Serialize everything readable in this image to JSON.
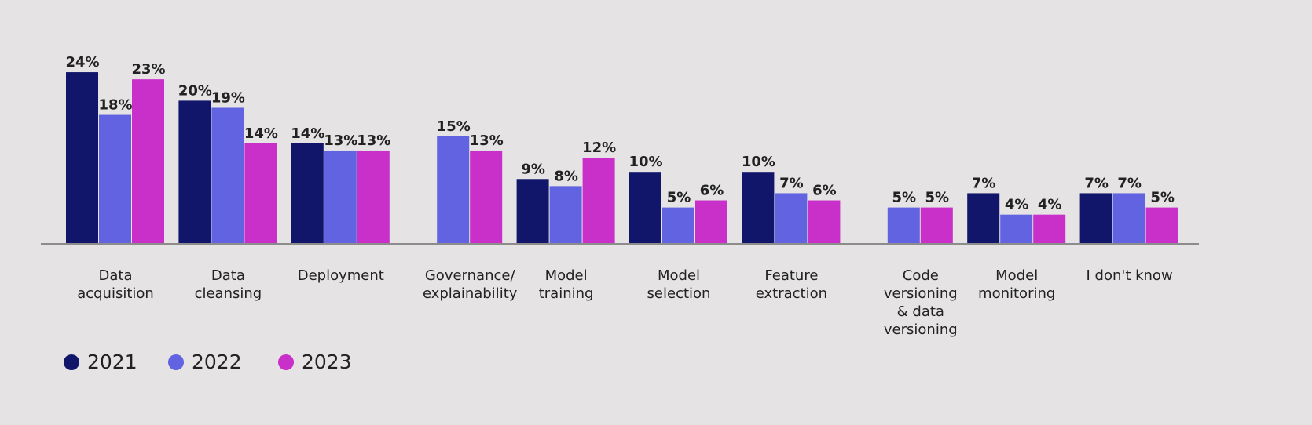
{
  "chart_data": {
    "type": "bar",
    "categories": [
      "Data\nacquisition",
      "Data\ncleansing",
      "Deployment",
      "Governance/\nexplainability",
      "Model\ntraining",
      "Model\nselection",
      "Feature\nextraction",
      "Code\nversioning\n& data\nversioning",
      "Model\nmonitoring",
      "I don't know"
    ],
    "series": [
      {
        "name": "2021",
        "color": "#12166b",
        "values": [
          24,
          20,
          14,
          null,
          9,
          10,
          10,
          null,
          7,
          7
        ],
        "value_labels": [
          "24%",
          "20%",
          "14%",
          null,
          "9%",
          "10%",
          "10%",
          null,
          "7%",
          "7%"
        ]
      },
      {
        "name": "2022",
        "color": "#6163e0",
        "values": [
          18,
          19,
          13,
          15,
          8,
          5,
          7,
          5,
          4,
          7
        ],
        "value_labels": [
          "18%",
          "19%",
          "13%",
          "15%",
          "8%",
          "5%",
          "7%",
          "5%",
          "4%",
          "7%"
        ]
      },
      {
        "name": "2023",
        "color": "#c92fc9",
        "values": [
          23,
          14,
          13,
          13,
          12,
          6,
          6,
          5,
          4,
          5
        ],
        "value_labels": [
          "23%",
          "14%",
          "13%",
          "13%",
          "12%",
          "6%",
          "6%",
          "5%",
          "4%",
          "5%"
        ]
      }
    ],
    "legend": "bottom-left"
  }
}
